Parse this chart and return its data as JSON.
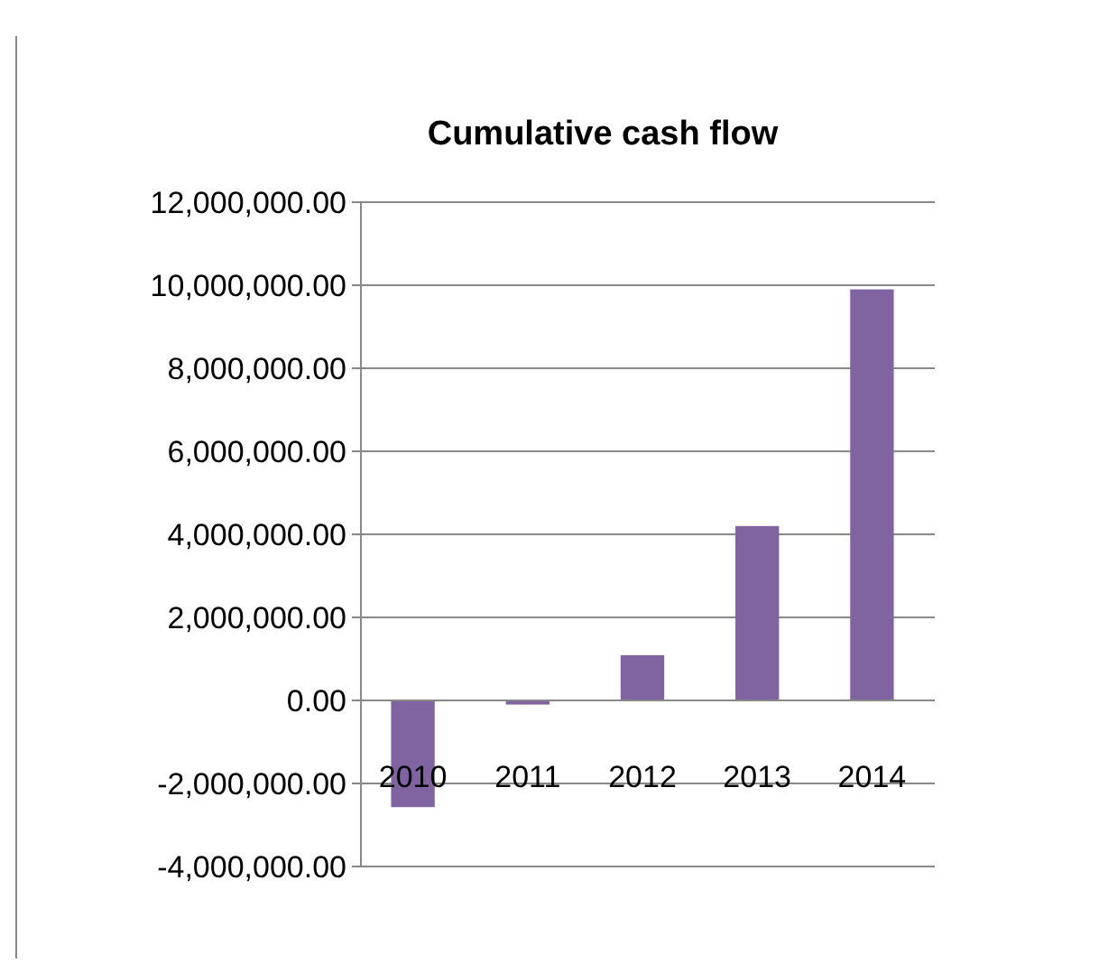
{
  "chart_data": {
    "type": "bar",
    "title": "Cumulative cash flow",
    "categories": [
      "2010",
      "2011",
      "2012",
      "2013",
      "2014"
    ],
    "values": [
      -2570000,
      -100000,
      1090000,
      4200000,
      9900000
    ],
    "color": "#8064a2",
    "ylim": [
      -4000000,
      12000000
    ],
    "yticks": [
      {
        "value": -4000000,
        "label": "-4,000,000.00"
      },
      {
        "value": -2000000,
        "label": "-2,000,000.00"
      },
      {
        "value": 0,
        "label": "0.00"
      },
      {
        "value": 2000000,
        "label": "2,000,000.00"
      },
      {
        "value": 4000000,
        "label": "4,000,000.00"
      },
      {
        "value": 6000000,
        "label": "6,000,000.00"
      },
      {
        "value": 8000000,
        "label": "8,000,000.00"
      },
      {
        "value": 10000000,
        "label": "10,000,000.00"
      },
      {
        "value": 12000000,
        "label": "12,000,000.00"
      }
    ],
    "grid": "y"
  }
}
